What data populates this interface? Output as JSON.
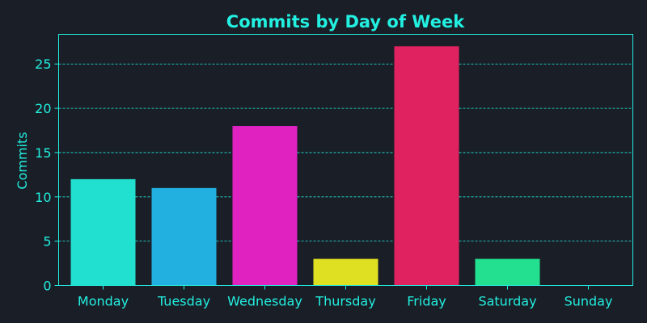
{
  "chart_data": {
    "type": "bar",
    "title": "Commits by Day of Week",
    "xlabel": "",
    "ylabel": "Commits",
    "categories": [
      "Monday",
      "Tuesday",
      "Wednesday",
      "Thursday",
      "Friday",
      "Saturday",
      "Sunday"
    ],
    "values": [
      12,
      11,
      18,
      3,
      27,
      3,
      0
    ],
    "bar_colors": [
      "#22e0d0",
      "#22b0e0",
      "#e022c0",
      "#e0e022",
      "#e02260",
      "#22e090",
      "#22e0d0"
    ],
    "ylim": [
      0,
      28.35
    ],
    "yticks": [
      0,
      5,
      10,
      15,
      20,
      25
    ],
    "grid": true,
    "grid_axis": "y",
    "legend": false
  },
  "colors": {
    "background": "#1a1e27",
    "accent": "#22f0e0"
  }
}
